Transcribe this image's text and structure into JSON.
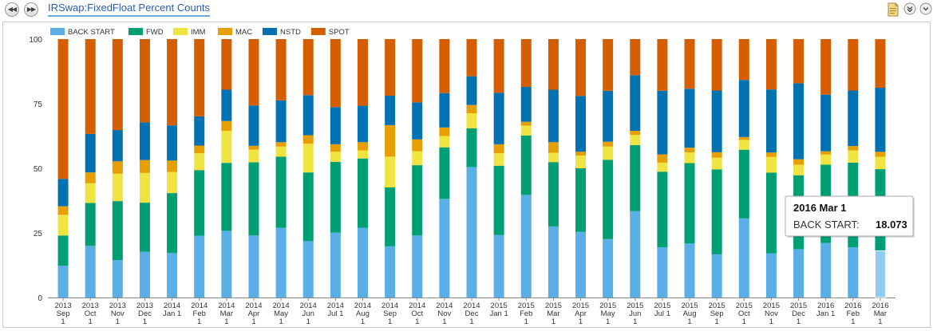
{
  "header": {
    "title": "IRSwap:FixedFloat Percent Counts",
    "prev_label": "◀◀",
    "next_label": "▶▶"
  },
  "toolbar_icons": [
    "document-icon",
    "collapse-icon",
    "expand-icon"
  ],
  "colors": {
    "BACK START": "#5aafe6",
    "FWD": "#009e73",
    "IMM": "#f0e442",
    "MAC": "#e69f00",
    "NSTD": "#0072b2",
    "SPOT": "#d55e00"
  },
  "tooltip": {
    "title": "2016 Mar 1",
    "label": "BACK START:",
    "value": "18.073"
  },
  "chart_data": {
    "type": "bar",
    "stacked": true,
    "ylim": [
      0,
      100
    ],
    "yticks": [
      0,
      25,
      50,
      75,
      100
    ],
    "grid": false,
    "legend_position": "top-left",
    "categories": [
      [
        "2013",
        "Sep",
        "1"
      ],
      [
        "2013",
        "Oct",
        "1"
      ],
      [
        "2013",
        "Nov",
        "1"
      ],
      [
        "2013",
        "Dec",
        "1"
      ],
      [
        "2014",
        "Jan 1"
      ],
      [
        "2014",
        "Feb",
        "1"
      ],
      [
        "2014",
        "Mar",
        "1"
      ],
      [
        "2014",
        "Apr",
        "1"
      ],
      [
        "2014",
        "May",
        "1"
      ],
      [
        "2014",
        "Jun",
        "1"
      ],
      [
        "2014",
        "Jul 1"
      ],
      [
        "2014",
        "Aug",
        "1"
      ],
      [
        "2014",
        "Sep",
        "1"
      ],
      [
        "2014",
        "Oct",
        "1"
      ],
      [
        "2014",
        "Nov",
        "1"
      ],
      [
        "2014",
        "Dec",
        "1"
      ],
      [
        "2015",
        "Jan 1"
      ],
      [
        "2015",
        "Feb",
        "1"
      ],
      [
        "2015",
        "Mar",
        "1"
      ],
      [
        "2015",
        "Apr",
        "1"
      ],
      [
        "2015",
        "May",
        "1"
      ],
      [
        "2015",
        "Jun",
        "1"
      ],
      [
        "2015",
        "Jul 1"
      ],
      [
        "2015",
        "Aug",
        "1"
      ],
      [
        "2015",
        "Sep",
        "1"
      ],
      [
        "2015",
        "Oct",
        "1"
      ],
      [
        "2015",
        "Nov",
        "1"
      ],
      [
        "2015",
        "Dec",
        "1"
      ],
      [
        "2016",
        "Jan 1"
      ],
      [
        "2016",
        "Feb",
        "1"
      ],
      [
        "2016",
        "Mar",
        "1"
      ]
    ],
    "series": [
      {
        "name": "BACK START",
        "values": [
          12.3,
          20.0,
          14.5,
          17.7,
          17.2,
          23.9,
          25.8,
          24.0,
          27.0,
          21.8,
          25.1,
          27.0,
          19.8,
          24.0,
          38.2,
          50.5,
          24.2,
          39.7,
          27.5,
          25.4,
          22.6,
          33.4,
          19.4,
          20.9,
          16.7,
          30.6,
          17.1,
          18.7,
          21.1,
          19.4,
          18.073
        ]
      },
      {
        "name": "FWD",
        "values": [
          11.7,
          16.6,
          22.8,
          19.0,
          23.2,
          25.4,
          26.3,
          28.3,
          27.5,
          26.6,
          27.4,
          26.8,
          22.8,
          27.2,
          19.9,
          15.0,
          26.8,
          23.0,
          24.9,
          24.6,
          30.7,
          25.6,
          29.3,
          31.1,
          32.9,
          26.6,
          31.2,
          28.6,
          30.3,
          32.8,
          31.6
        ]
      },
      {
        "name": "IMM",
        "values": [
          8.0,
          7.6,
          10.6,
          11.5,
          8.2,
          6.5,
          12.4,
          4.9,
          3.9,
          11.1,
          3.9,
          3.1,
          11.9,
          5.4,
          4.4,
          5.8,
          4.8,
          3.8,
          3.6,
          4.9,
          5.1,
          3.9,
          3.5,
          4.2,
          4.5,
          3.8,
          6.1,
          4.1,
          3.9,
          4.7,
          4.8
        ]
      },
      {
        "name": "MAC",
        "values": [
          3.3,
          4.2,
          4.8,
          5.0,
          4.4,
          3.0,
          3.8,
          1.5,
          1.7,
          3.3,
          2.9,
          3.2,
          12.2,
          4.6,
          3.3,
          3.2,
          3.5,
          1.5,
          4.1,
          1.5,
          1.9,
          1.6,
          3.2,
          1.8,
          2.1,
          1.1,
          1.7,
          2.1,
          1.3,
          1.7,
          1.9
        ]
      },
      {
        "name": "NSTD",
        "values": [
          10.6,
          14.9,
          12.1,
          14.6,
          13.6,
          11.3,
          12.1,
          15.6,
          16.2,
          15.5,
          14.4,
          14.1,
          11.4,
          14.3,
          13.3,
          11.1,
          19.9,
          13.5,
          20.3,
          21.6,
          19.7,
          21.5,
          24.6,
          22.8,
          23.9,
          22.1,
          24.4,
          29.4,
          21.9,
          21.5,
          24.8
        ]
      },
      {
        "name": "SPOT",
        "values": [
          54.1,
          36.7,
          35.2,
          32.2,
          33.4,
          29.9,
          19.6,
          25.7,
          23.7,
          21.7,
          26.3,
          25.8,
          21.9,
          24.5,
          20.9,
          14.4,
          20.8,
          18.5,
          19.6,
          22.0,
          20.0,
          14.0,
          20.0,
          19.2,
          19.9,
          15.8,
          19.5,
          17.1,
          21.5,
          19.9,
          18.8
        ]
      }
    ]
  }
}
